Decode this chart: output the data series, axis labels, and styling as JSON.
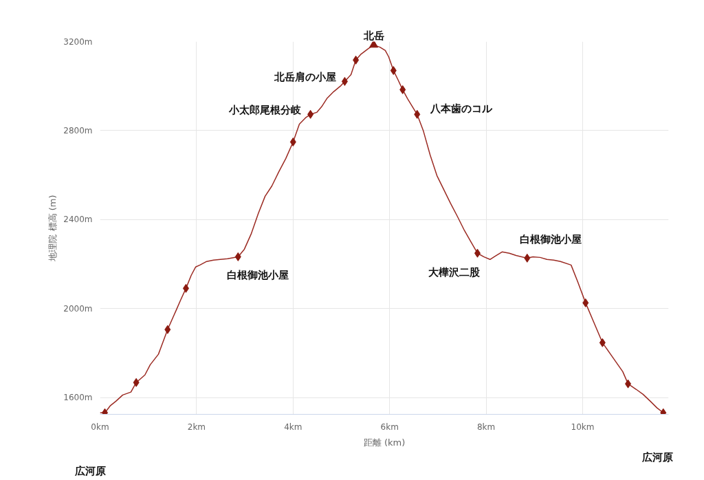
{
  "chart_data": {
    "type": "line",
    "xlabel": "距離 (km)",
    "ylabel": "地理院 標高 (m)",
    "xlim": [
      0,
      11.78
    ],
    "ylim": [
      1525,
      3200
    ],
    "xticks": [
      {
        "value": 0,
        "label": "0km"
      },
      {
        "value": 2,
        "label": "2km"
      },
      {
        "value": 4,
        "label": "4km"
      },
      {
        "value": 6,
        "label": "6km"
      },
      {
        "value": 8,
        "label": "8km"
      },
      {
        "value": 10,
        "label": "10km"
      }
    ],
    "yticks": [
      {
        "value": 1600,
        "label": "1600m"
      },
      {
        "value": 2000,
        "label": "2000m"
      },
      {
        "value": 2400,
        "label": "2400m"
      },
      {
        "value": 2800,
        "label": "2800m"
      },
      {
        "value": 3200,
        "label": "3200m"
      }
    ],
    "grid": true,
    "series": [
      {
        "color": "#9b2a22",
        "marker": "none",
        "x": [
          0.0,
          0.1,
          0.21,
          0.33,
          0.47,
          0.64,
          0.75,
          0.93,
          1.04,
          1.21,
          1.4,
          1.57,
          1.67,
          1.78,
          1.89,
          1.98,
          2.07,
          2.21,
          2.35,
          2.49,
          2.64,
          2.86,
          2.99,
          3.13,
          3.28,
          3.42,
          3.56,
          3.7,
          3.85,
          4.0,
          4.13,
          4.27,
          4.36,
          4.49,
          4.59,
          4.7,
          4.84,
          4.99,
          5.07,
          5.2,
          5.3,
          5.41,
          5.56,
          5.67,
          5.8,
          5.91,
          5.98,
          6.08,
          6.17,
          6.27,
          6.37,
          6.57,
          6.7,
          6.84,
          6.98,
          7.12,
          7.26,
          7.41,
          7.55,
          7.69,
          7.82,
          7.95,
          8.08,
          8.19,
          8.33,
          8.48,
          8.62,
          8.85,
          8.97,
          9.12,
          9.26,
          9.4,
          9.54,
          9.76,
          9.9,
          10.06,
          10.21,
          10.41,
          10.61,
          10.83,
          10.94,
          11.11,
          11.25,
          11.4,
          11.54,
          11.67
        ],
        "values": [
          1532,
          1532,
          1563,
          1584,
          1612,
          1625,
          1668,
          1702,
          1748,
          1795,
          1906,
          1989,
          2039,
          2091,
          2150,
          2187,
          2196,
          2212,
          2218,
          2221,
          2224,
          2233,
          2267,
          2335,
          2428,
          2505,
          2551,
          2613,
          2675,
          2749,
          2829,
          2860,
          2873,
          2882,
          2907,
          2944,
          2975,
          3002,
          3021,
          3052,
          3117,
          3144,
          3169,
          3185,
          3175,
          3160,
          3132,
          3070,
          3030,
          2984,
          2944,
          2873,
          2798,
          2690,
          2598,
          2536,
          2474,
          2412,
          2351,
          2298,
          2249,
          2233,
          2221,
          2236,
          2255,
          2249,
          2239,
          2227,
          2233,
          2230,
          2221,
          2218,
          2212,
          2196,
          2119,
          2026,
          1949,
          1847,
          1785,
          1717,
          1662,
          1637,
          1615,
          1584,
          1554,
          1532
        ]
      },
      {
        "type": "scatter",
        "color": "#8b1a10",
        "marker": "diamond",
        "x": [
          0.1,
          0.75,
          1.4,
          1.78,
          2.86,
          4.0,
          4.36,
          5.07,
          5.3,
          6.08,
          6.27,
          6.57,
          7.82,
          8.85,
          10.06,
          10.41,
          10.94,
          11.67
        ],
        "values": [
          1532,
          1668,
          1906,
          2091,
          2233,
          2749,
          2873,
          3021,
          3117,
          3070,
          2984,
          2873,
          2249,
          2227,
          2026,
          1847,
          1662,
          1532
        ]
      },
      {
        "type": "scatter",
        "color": "#8b1a10",
        "marker": "triangle",
        "x": [
          5.67
        ],
        "values": [
          3185
        ]
      }
    ],
    "annotations": [
      "北岳",
      {
        "text": "北岳肩の小屋",
        "x": 5.07,
        "y": 3021
      },
      {
        "text": "小太郎尾根分岐",
        "x": 4.36,
        "y": 2873
      },
      {
        "text": "八本歯のコル",
        "x": 6.57,
        "y": 2873
      },
      {
        "text": "白根御池小屋",
        "x": 2.86,
        "y": 2233
      },
      {
        "text": "大樺沢二股",
        "x": 7.82,
        "y": 2249
      },
      {
        "text": "白根御池小屋",
        "x": 8.85,
        "y": 2227
      },
      "広河原",
      "広河原"
    ]
  }
}
